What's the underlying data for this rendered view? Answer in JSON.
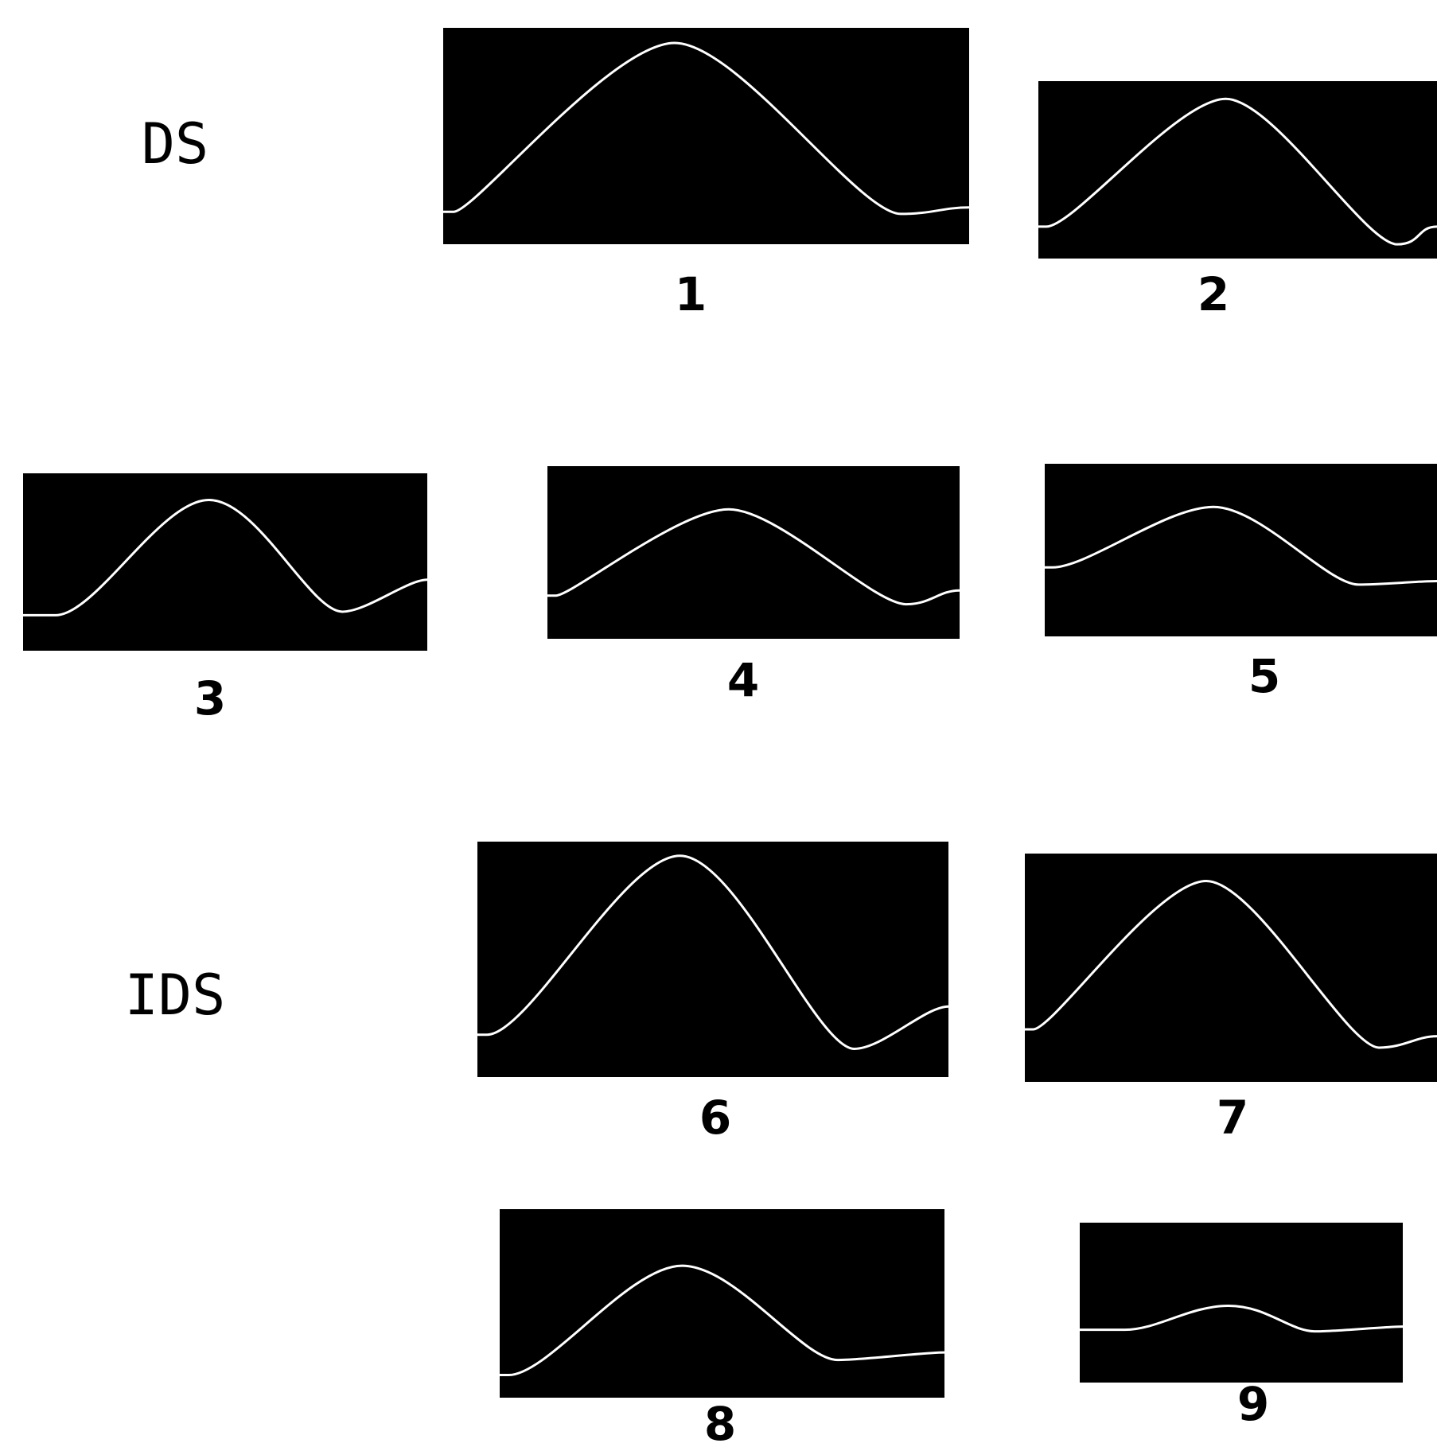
{
  "labels": {
    "top_group": "DS",
    "bottom_group": "IDS"
  },
  "panels": [
    {
      "label": "1"
    },
    {
      "label": "2"
    },
    {
      "label": "3"
    },
    {
      "label": "4"
    },
    {
      "label": "5"
    },
    {
      "label": "6"
    },
    {
      "label": "7"
    },
    {
      "label": "8"
    },
    {
      "label": "9"
    }
  ]
}
